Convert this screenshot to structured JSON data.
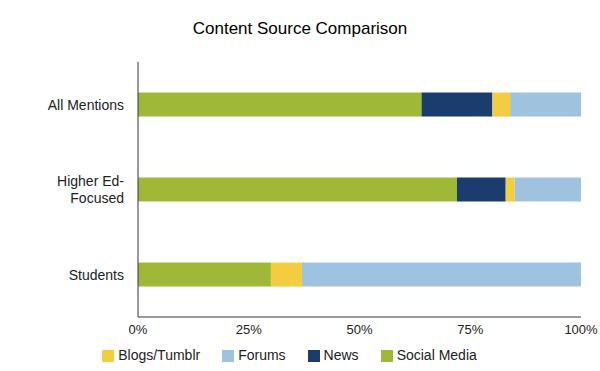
{
  "chart_data": {
    "type": "bar",
    "title": "Content Source Comparison",
    "orientation": "horizontal",
    "stacked": true,
    "grid": false,
    "legend": "bottom",
    "categories": [
      "All Mentions",
      "Higher Ed-Focused",
      "Students"
    ],
    "series": [
      {
        "name": "Social Media",
        "color": "#9fb837",
        "values": [
          64,
          72,
          30
        ]
      },
      {
        "name": "News",
        "color": "#1b3d6d",
        "values": [
          16,
          11,
          0
        ]
      },
      {
        "name": "Blogs/Tumblr",
        "color": "#f2cd3f",
        "values": [
          4,
          2,
          7
        ]
      },
      {
        "name": "Forums",
        "color": "#9fc3df",
        "values": [
          16,
          15,
          63
        ]
      }
    ],
    "xlim": [
      0,
      100
    ],
    "xticks": [
      {
        "value": 0,
        "label": "0%"
      },
      {
        "value": 25,
        "label": "25%"
      },
      {
        "value": 50,
        "label": "50%"
      },
      {
        "value": 75,
        "label": "75%"
      },
      {
        "value": 100,
        "label": "100%"
      }
    ]
  }
}
